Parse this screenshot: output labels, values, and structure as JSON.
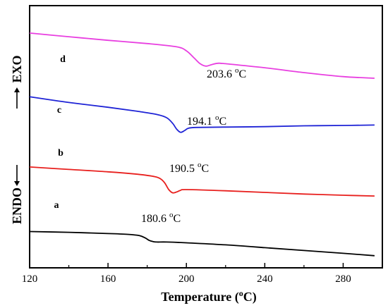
{
  "chart_data": {
    "type": "line",
    "title": "",
    "xlabel": "Temperature (°C)",
    "xlabel_parts": {
      "before": "Temperature (",
      "sup": "o",
      "after": "C)"
    },
    "ylabel": "ENDO ←      → EXO",
    "ylabel_parts": {
      "endo": "ENDO",
      "exo": "EXO"
    },
    "xlim": [
      120,
      300
    ],
    "x_ticks": [
      120,
      160,
      200,
      240,
      280
    ],
    "y_ticks_shown": false,
    "grid": false,
    "y_units": "relative heat flow (arbitrary)",
    "series": [
      {
        "letter": "a",
        "color": "#000000",
        "annotation": "180.6 °C",
        "annotation_parts": {
          "value": "180.6 ",
          "sup": "o",
          "unit": "C"
        },
        "x": [
          120,
          140,
          160,
          170,
          176,
          179,
          181,
          183,
          185,
          190,
          200,
          220,
          240,
          260,
          280,
          296
        ],
        "y": [
          0.3,
          0.28,
          0.25,
          0.23,
          0.2,
          0.14,
          0.08,
          0.05,
          0.04,
          0.04,
          0.02,
          -0.03,
          -0.1,
          -0.17,
          -0.24,
          -0.3
        ]
      },
      {
        "letter": "b",
        "color": "#e8201e",
        "annotation": "190.5 °C",
        "annotation_parts": {
          "value": "190.5 ",
          "sup": "o",
          "unit": "C"
        },
        "x": [
          120,
          140,
          160,
          175,
          184,
          187,
          189,
          191,
          193,
          195,
          197,
          200,
          220,
          240,
          260,
          280,
          296
        ],
        "y": [
          1.9,
          1.84,
          1.78,
          1.72,
          1.66,
          1.6,
          1.5,
          1.34,
          1.26,
          1.28,
          1.32,
          1.34,
          1.31,
          1.27,
          1.23,
          1.2,
          1.18
        ]
      },
      {
        "letter": "c",
        "color": "#1f24d6",
        "annotation": "194.1 °C",
        "annotation_parts": {
          "value": "194.1 ",
          "sup": "o",
          "unit": "C"
        },
        "x": [
          120,
          140,
          160,
          175,
          185,
          190,
          193,
          195,
          197,
          199,
          201,
          205,
          220,
          240,
          260,
          280,
          296
        ],
        "y": [
          3.64,
          3.5,
          3.38,
          3.28,
          3.2,
          3.12,
          2.98,
          2.84,
          2.76,
          2.8,
          2.86,
          2.88,
          2.89,
          2.9,
          2.92,
          2.93,
          2.94
        ]
      },
      {
        "letter": "d",
        "color": "#e83fe0",
        "annotation": "203.6 °C",
        "annotation_parts": {
          "value": "203.6 ",
          "sup": "o",
          "unit": "C"
        },
        "x": [
          120,
          140,
          160,
          180,
          195,
          200,
          204,
          207,
          210,
          213,
          216,
          220,
          240,
          260,
          280,
          296
        ],
        "y": [
          5.22,
          5.13,
          5.04,
          4.96,
          4.88,
          4.78,
          4.6,
          4.46,
          4.4,
          4.44,
          4.47,
          4.46,
          4.36,
          4.24,
          4.14,
          4.1
        ]
      }
    ]
  }
}
